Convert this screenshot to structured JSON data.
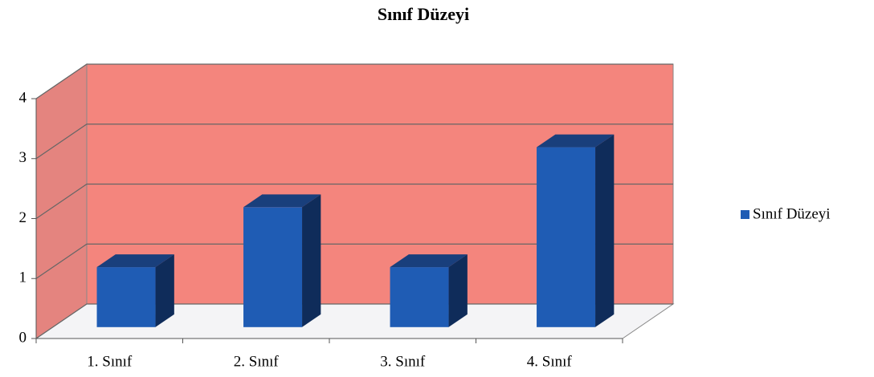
{
  "chart_data": {
    "type": "bar",
    "title": "Sınıf Düzeyi",
    "categories": [
      "1. Sınıf",
      "2. Sınıf",
      "3. Sınıf",
      "4. Sınıf"
    ],
    "series": [
      {
        "name": "Sınıf Düzeyi",
        "color": "#1f5cb4",
        "values": [
          1,
          2,
          1,
          3
        ]
      }
    ],
    "ylim": [
      0,
      4
    ],
    "yticks": [
      0,
      1,
      2,
      3,
      4
    ],
    "grid": true,
    "legend": "right"
  }
}
